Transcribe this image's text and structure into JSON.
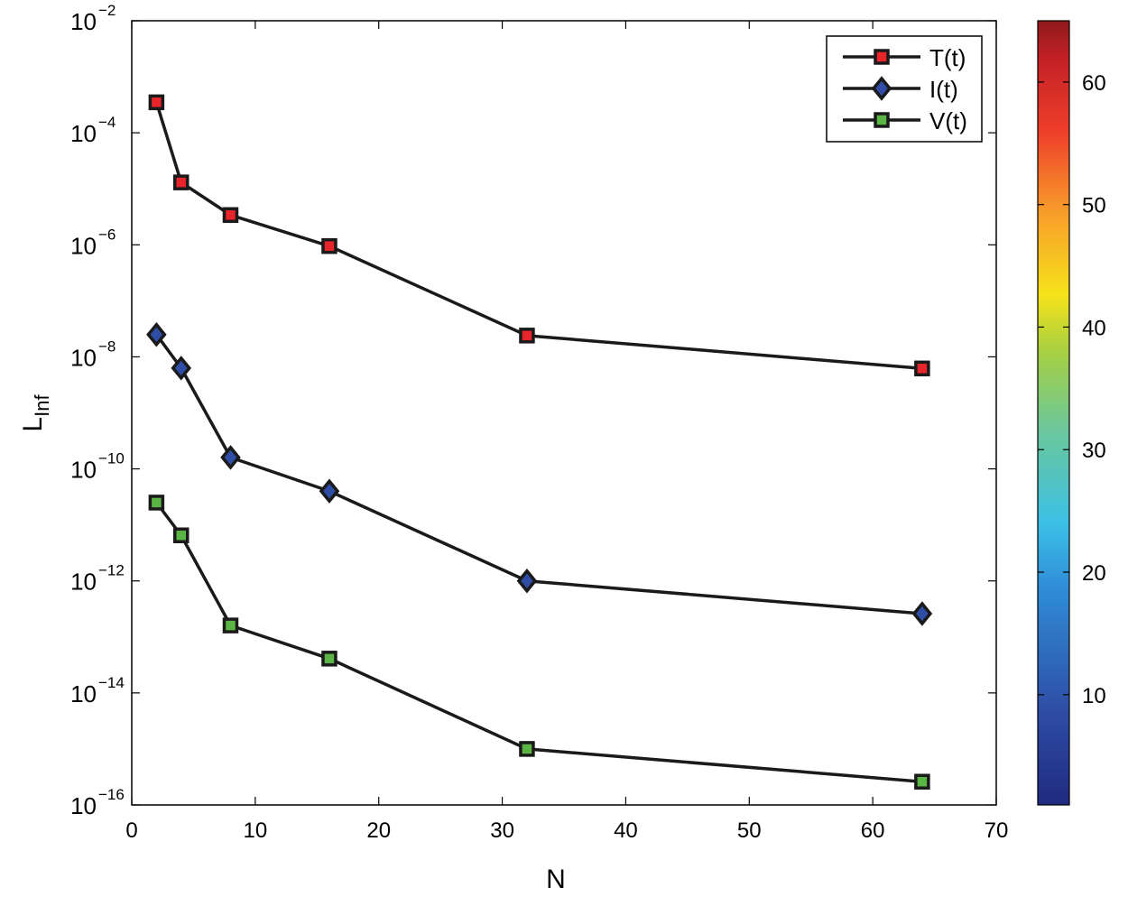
{
  "chart_data": {
    "type": "line",
    "xlabel": "N",
    "ylabel": "L",
    "ylabel_subscript": "Inf",
    "x_scale": "linear",
    "y_scale": "log",
    "xlim": [
      0,
      70
    ],
    "ylim": [
      1e-16,
      0.01
    ],
    "x_ticks": [
      0,
      10,
      20,
      30,
      40,
      50,
      60,
      70
    ],
    "y_tick_exponents": [
      -16,
      -14,
      -12,
      -10,
      -8,
      -6,
      -4,
      -2
    ],
    "y_tick_base": "10",
    "x": [
      2,
      4,
      8,
      16,
      32,
      64
    ],
    "series": [
      {
        "name": "T(t)",
        "marker": "square",
        "color": "#e8252a",
        "values": [
          0.00035,
          1.3e-05,
          3.4e-06,
          9.5e-07,
          2.4e-08,
          6.2e-09
        ]
      },
      {
        "name": "I(t)",
        "marker": "diamond",
        "color": "#2f4da5",
        "values": [
          2.5e-08,
          6.3e-09,
          1.6e-10,
          4e-11,
          1e-12,
          2.6e-13
        ]
      },
      {
        "name": "V(t)",
        "marker": "square",
        "color": "#5bb544",
        "values": [
          2.5e-11,
          6.5e-12,
          1.6e-13,
          4.1e-14,
          1e-15,
          2.6e-16
        ]
      }
    ],
    "legend_position": "top-right",
    "line_color": "#1a1a1a",
    "colorbar": {
      "range": [
        1,
        65
      ],
      "ticks": [
        10,
        20,
        30,
        40,
        50,
        60
      ],
      "colormap": "jet"
    }
  }
}
